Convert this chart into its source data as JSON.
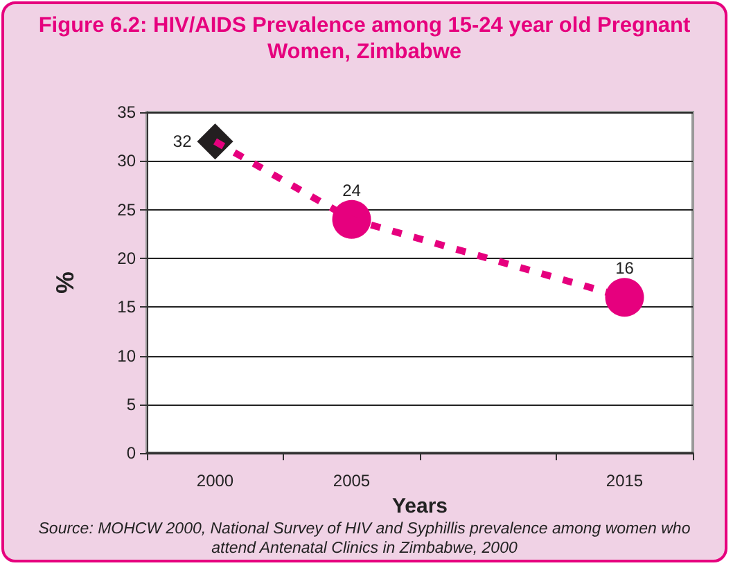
{
  "chart_data": {
    "type": "line",
    "title": "Figure 6.2: HIV/AIDS Prevalence among 15-24 year old Pregnant Women, Zimbabwe",
    "xlabel": "Years",
    "ylabel": "%",
    "categories": [
      "2000",
      "2005",
      null,
      "2015"
    ],
    "series": [
      {
        "type": "line",
        "color": "#e6007e",
        "values": [
          32,
          24,
          null,
          16
        ],
        "marker": "none",
        "line_style": "dashed"
      },
      {
        "type": "scatter",
        "color": "#e6007e",
        "values": [
          null,
          24,
          null,
          16
        ],
        "marker": "circle",
        "value_labels": [
          null,
          "24",
          null,
          "16"
        ]
      },
      {
        "type": "scatter",
        "color": "#231f20",
        "values": [
          32,
          null,
          null,
          null
        ],
        "marker": "diamond",
        "value_labels": [
          "32",
          null,
          null,
          null
        ]
      }
    ],
    "ylim": [
      0,
      35
    ],
    "yticks": [
      0,
      5,
      10,
      15,
      20,
      25,
      30,
      35
    ],
    "grid": "y",
    "annotations": [
      "Source: MOHCW 2000, National Survey of HIV and Syphillis prevalence among women who attend Antenatal Clinics in Zimbabwe, 2000"
    ]
  }
}
